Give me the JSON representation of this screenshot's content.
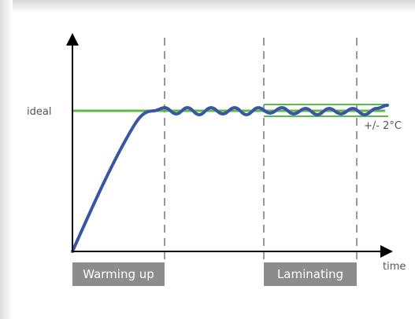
{
  "labels": {
    "y_reference": "ideal",
    "x_axis": "time",
    "tolerance": "+/- 2°C"
  },
  "phases": [
    {
      "label": "Warming up"
    },
    {
      "label": "Laminating"
    }
  ],
  "colors": {
    "temperature_curve": "#3a55a4",
    "ideal_line": "#5bb946",
    "tolerance_band": "#5bb946",
    "phase_box": "#8c8c8c",
    "phase_divider": "#999999",
    "axis": "#000000",
    "label_text": "#555555"
  }
}
